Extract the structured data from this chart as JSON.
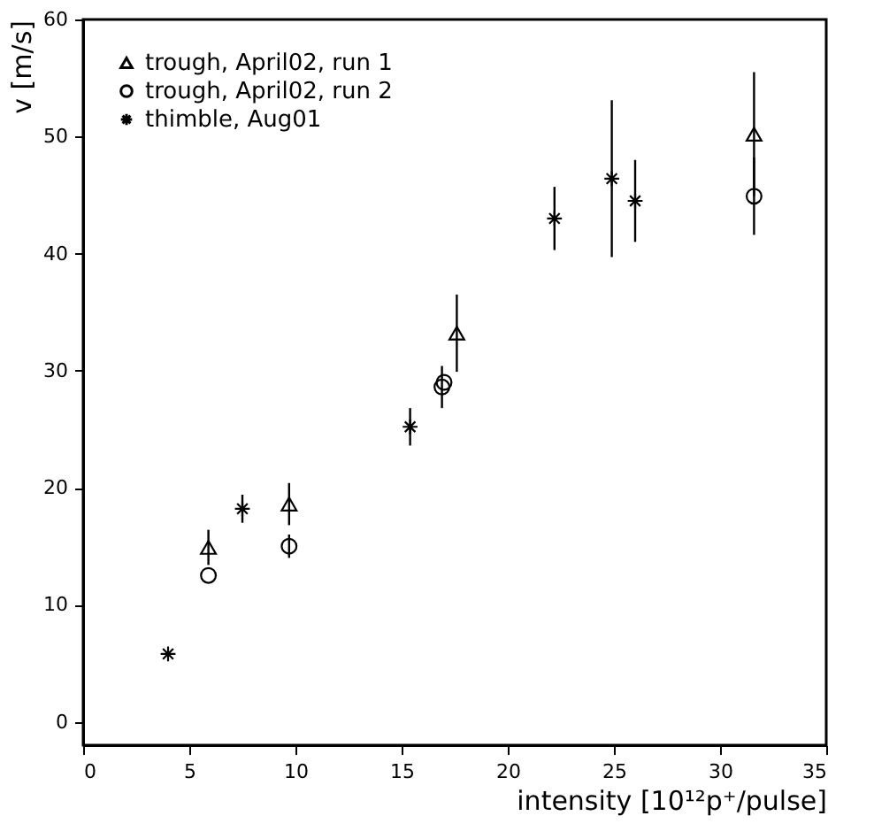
{
  "chart_data": {
    "type": "scatter",
    "xlabel": "intensity [10¹²p⁺/pulse]",
    "ylabel": "v [m/s]",
    "xlim": [
      0,
      35
    ],
    "xticks": [
      0,
      5,
      10,
      15,
      20,
      25,
      30,
      35
    ],
    "ylim": [
      -2,
      60
    ],
    "yticks": [
      0,
      10,
      20,
      30,
      40,
      50,
      60
    ],
    "grid": false,
    "legend": "top left",
    "series": [
      {
        "name": "trough, April02, run 1",
        "color": "#000000",
        "marker": "triangle",
        "x": [
          5.9,
          9.7,
          17.6,
          31.6
        ],
        "values": [
          14.9,
          18.6,
          33.2,
          50.2
        ],
        "errors": [
          1.5,
          1.8,
          3.3,
          5.3
        ]
      },
      {
        "name": "trough, April02, run 2",
        "color": "#000000",
        "marker": "circle",
        "x": [
          5.9,
          9.7,
          16.9,
          17.0,
          31.6
        ],
        "values": [
          12.5,
          15.0,
          28.6,
          29.0,
          44.9
        ],
        "errors": [
          null,
          1.0,
          1.8,
          null,
          3.3
        ]
      },
      {
        "name": "thimble, Aug01",
        "color": "#000000",
        "marker": "cross",
        "x": [
          4.0,
          7.5,
          15.4,
          22.2,
          24.9,
          26.0
        ],
        "values": [
          5.8,
          18.2,
          25.2,
          43.0,
          46.4,
          44.5
        ],
        "errors": [
          null,
          1.2,
          1.6,
          2.7,
          6.7,
          3.5
        ]
      }
    ]
  }
}
